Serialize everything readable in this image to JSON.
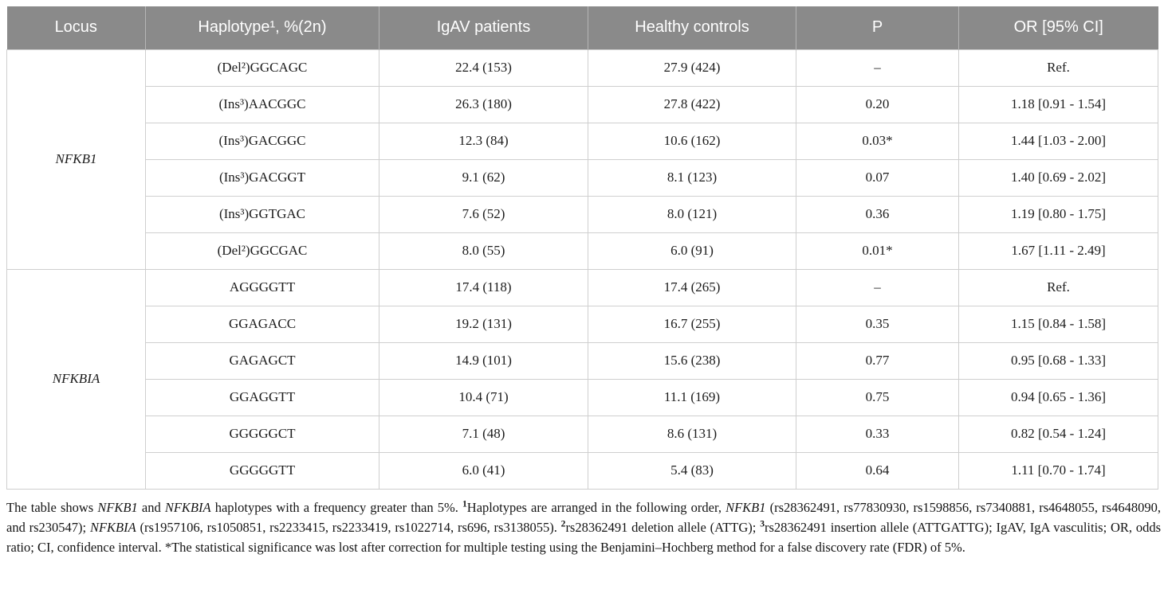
{
  "colors": {
    "header_bg": "#8a8a8a",
    "header_text": "#ffffff",
    "grid_border": "#cfcfcf",
    "body_text": "#1c1c1c"
  },
  "table": {
    "headers": [
      "Locus",
      "Haplotype¹, %(2n)",
      "IgAV patients",
      "Healthy controls",
      "P",
      "OR [95% CI]"
    ],
    "column_names": [
      "haplotype",
      "igav_patients",
      "healthy_controls",
      "p_value",
      "or_95ci"
    ],
    "sections": [
      {
        "locus": "NFKB1",
        "rows": [
          {
            "haplotype": "(Del²)GGCAGC",
            "igav_patients": "22.4 (153)",
            "healthy_controls": "27.9 (424)",
            "p_value": "–",
            "or_95ci": "Ref."
          },
          {
            "haplotype": "(Ins³)AACGGC",
            "igav_patients": "26.3 (180)",
            "healthy_controls": "27.8 (422)",
            "p_value": "0.20",
            "or_95ci": "1.18 [0.91 - 1.54]"
          },
          {
            "haplotype": "(Ins³)GACGGC",
            "igav_patients": "12.3 (84)",
            "healthy_controls": "10.6 (162)",
            "p_value": "0.03*",
            "or_95ci": "1.44 [1.03 - 2.00]"
          },
          {
            "haplotype": "(Ins³)GACGGT",
            "igav_patients": "9.1 (62)",
            "healthy_controls": "8.1 (123)",
            "p_value": "0.07",
            "or_95ci": "1.40 [0.69 - 2.02]"
          },
          {
            "haplotype": "(Ins³)GGTGAC",
            "igav_patients": "7.6 (52)",
            "healthy_controls": "8.0 (121)",
            "p_value": "0.36",
            "or_95ci": "1.19 [0.80 - 1.75]"
          },
          {
            "haplotype": "(Del²)GGCGAC",
            "igav_patients": "8.0 (55)",
            "healthy_controls": "6.0 (91)",
            "p_value": "0.01*",
            "or_95ci": "1.67 [1.11 - 2.49]"
          }
        ]
      },
      {
        "locus": "NFKBIA",
        "rows": [
          {
            "haplotype": "AGGGGTT",
            "igav_patients": "17.4 (118)",
            "healthy_controls": "17.4 (265)",
            "p_value": "–",
            "or_95ci": "Ref."
          },
          {
            "haplotype": "GGAGACC",
            "igav_patients": "19.2 (131)",
            "healthy_controls": "16.7 (255)",
            "p_value": "0.35",
            "or_95ci": "1.15 [0.84 - 1.58]"
          },
          {
            "haplotype": "GAGAGCT",
            "igav_patients": "14.9 (101)",
            "healthy_controls": "15.6 (238)",
            "p_value": "0.77",
            "or_95ci": "0.95 [0.68 - 1.33]"
          },
          {
            "haplotype": "GGAGGTT",
            "igav_patients": "10.4 (71)",
            "healthy_controls": "11.1 (169)",
            "p_value": "0.75",
            "or_95ci": "0.94 [0.65 - 1.36]"
          },
          {
            "haplotype": "GGGGGCT",
            "igav_patients": "7.1 (48)",
            "healthy_controls": "8.6 (131)",
            "p_value": "0.33",
            "or_95ci": "0.82 [0.54 - 1.24]"
          },
          {
            "haplotype": "GGGGGTT",
            "igav_patients": "6.0 (41)",
            "healthy_controls": "5.4 (83)",
            "p_value": "0.64",
            "or_95ci": "1.11 [0.70 - 1.74]"
          }
        ]
      }
    ]
  },
  "footnote": {
    "segments": [
      {
        "text": "The table shows "
      },
      {
        "text": "NFKB1",
        "italic": true
      },
      {
        "text": " and "
      },
      {
        "text": "NFKBIA",
        "italic": true
      },
      {
        "text": " haplotypes with a frequency greater than 5%. "
      },
      {
        "text": "1",
        "sup": true,
        "bold": true
      },
      {
        "text": "Haplotypes are arranged in the following order, "
      },
      {
        "text": "NFKB1",
        "italic": true
      },
      {
        "text": " (rs28362491, rs77830930, rs1598856, rs7340881, rs4648055, rs4648090, and rs230547); "
      },
      {
        "text": "NFKBIA",
        "italic": true
      },
      {
        "text": " (rs1957106, rs1050851, rs2233415, rs2233419, rs1022714, rs696, rs3138055). "
      },
      {
        "text": "2",
        "sup": true,
        "bold": true
      },
      {
        "text": "rs28362491 deletion allele (ATTG); "
      },
      {
        "text": "3",
        "sup": true,
        "bold": true
      },
      {
        "text": "rs28362491 insertion allele (ATTGATTG); IgAV, IgA vasculitis; OR, odds ratio; CI, confidence interval. *The statistical significance was lost after correction for multiple testing using the Benjamini–Hochberg method for a false discovery rate (FDR) of 5%."
      }
    ]
  }
}
